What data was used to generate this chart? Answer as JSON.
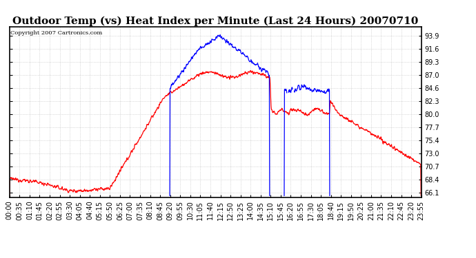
{
  "title": "Outdoor Temp (vs) Heat Index per Minute (Last 24 Hours) 20070710",
  "copyright": "Copyright 2007 Cartronics.com",
  "yticks": [
    66.1,
    68.4,
    70.7,
    73.0,
    75.4,
    77.7,
    80.0,
    82.3,
    84.6,
    87.0,
    89.3,
    91.6,
    93.9
  ],
  "ylim": [
    65.2,
    95.5
  ],
  "xtick_labels": [
    "00:00",
    "00:35",
    "01:10",
    "01:45",
    "02:20",
    "02:55",
    "03:30",
    "04:05",
    "04:40",
    "05:15",
    "05:50",
    "06:25",
    "07:00",
    "07:35",
    "08:10",
    "08:45",
    "09:20",
    "09:55",
    "10:30",
    "11:05",
    "11:40",
    "12:15",
    "12:50",
    "13:25",
    "14:00",
    "14:35",
    "15:10",
    "15:45",
    "16:20",
    "16:55",
    "17:30",
    "18:05",
    "18:40",
    "19:15",
    "19:50",
    "20:25",
    "21:00",
    "21:35",
    "22:10",
    "22:45",
    "23:20",
    "23:55"
  ],
  "bg_color": "#ffffff",
  "grid_color": "#aaaaaa",
  "line_color_temp": "#ff0000",
  "line_color_heat": "#0000ff",
  "title_fontsize": 11,
  "label_fontsize": 7,
  "copyright_fontsize": 6
}
